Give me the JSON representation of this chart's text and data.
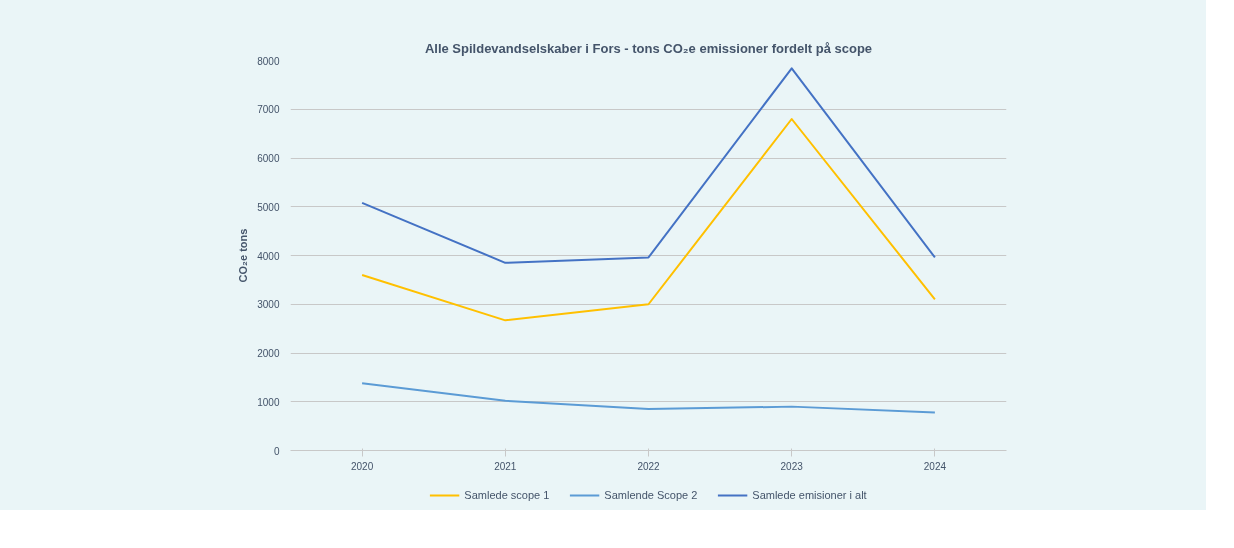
{
  "chart_data": {
    "type": "line",
    "title": "Alle Spildevandselskaber i Fors - tons CO₂e emissioner fordelt på scope",
    "ylabel": "CO₂e tons",
    "categories": [
      "2020",
      "2021",
      "2022",
      "2023",
      "2024"
    ],
    "series": [
      {
        "name": "Samlede scope 1",
        "color": "#ffc000",
        "values": [
          3600,
          2670,
          3000,
          6800,
          3100
        ]
      },
      {
        "name": "Samlende Scope 2",
        "color": "#5b9bd5",
        "values": [
          1380,
          1020,
          850,
          900,
          780
        ]
      },
      {
        "name": "Samlede emisioner i alt",
        "color": "#4472c4",
        "values": [
          5080,
          3850,
          3960,
          7840,
          3960
        ]
      }
    ],
    "ylim": [
      0,
      8000
    ],
    "yticks": [
      0,
      1000,
      2000,
      3000,
      4000,
      5000,
      6000,
      7000,
      8000
    ],
    "grid": "y",
    "legend": "bottom",
    "marker": "none",
    "line_style": "solid"
  }
}
